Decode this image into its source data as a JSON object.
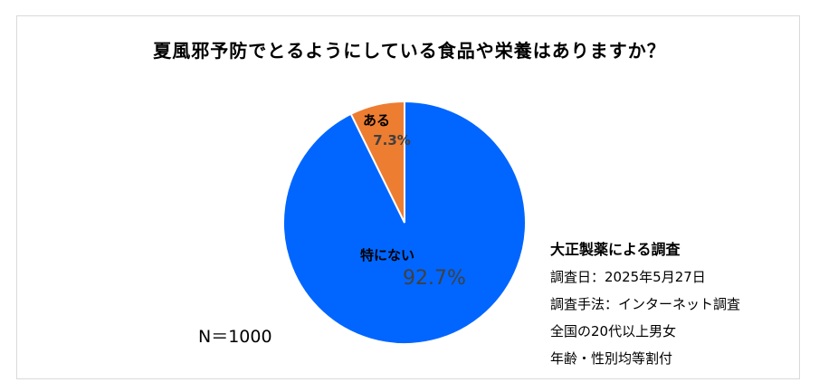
{
  "chart_data": {
    "type": "pie",
    "title": "夏風邪予防でとるようにしている食品や栄養はありますか？",
    "slices": [
      {
        "label": "ある",
        "value_label": "7.3%",
        "value": 7.3,
        "color": "#ED7D31"
      },
      {
        "label": "特にない",
        "value_label": "92.7%",
        "value": 92.7,
        "color": "#0066FF"
      }
    ]
  },
  "sample_size": "N＝1000",
  "source": {
    "title": "大正製薬による調査",
    "lines": [
      "調査日：2025年5月27日",
      "調査手法：インターネット調査",
      "全国の20代以上男女",
      "年齢・性別均等割付"
    ]
  }
}
